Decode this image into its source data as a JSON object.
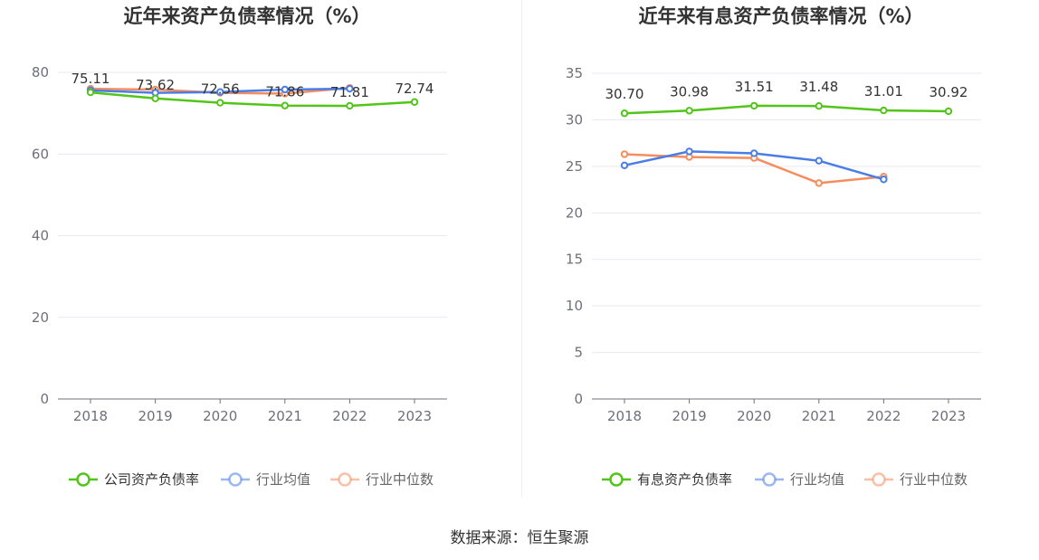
{
  "source": "数据来源：恒生聚源",
  "chart_data": [
    {
      "type": "line",
      "title": "近年来资产负债率情况（%）",
      "categories": [
        "2018",
        "2019",
        "2020",
        "2021",
        "2022",
        "2023"
      ],
      "ylim": [
        0,
        80
      ],
      "yticks": [
        0,
        20,
        40,
        60,
        80
      ],
      "grid": true,
      "legend_position": "bottom",
      "series": [
        {
          "name": "公司资产负债率",
          "color": "#52c41a",
          "values": [
            75.11,
            73.62,
            72.56,
            71.86,
            71.81,
            72.74
          ],
          "labels": [
            "75.11",
            "73.62",
            "72.56",
            "71.86",
            "71.81",
            "72.74"
          ]
        },
        {
          "name": "行业均值",
          "color": "#4a7de6",
          "values": [
            75.6,
            75.0,
            75.2,
            75.8,
            76.0,
            null
          ]
        },
        {
          "name": "行业中位数",
          "color": "#f58d5e",
          "values": [
            76.0,
            75.8,
            75.0,
            74.8,
            76.2,
            null
          ]
        }
      ]
    },
    {
      "type": "line",
      "title": "近年来有息资产负债率情况（%）",
      "categories": [
        "2018",
        "2019",
        "2020",
        "2021",
        "2022",
        "2023"
      ],
      "ylim": [
        0,
        35
      ],
      "yticks": [
        0,
        5,
        10,
        15,
        20,
        25,
        30,
        35
      ],
      "grid": true,
      "legend_position": "bottom",
      "series": [
        {
          "name": "有息资产负债率",
          "color": "#52c41a",
          "values": [
            30.7,
            30.98,
            31.51,
            31.48,
            31.01,
            30.92
          ],
          "labels": [
            "30.70",
            "30.98",
            "31.51",
            "31.48",
            "31.01",
            "30.92"
          ]
        },
        {
          "name": "行业均值",
          "color": "#4a7de6",
          "values": [
            25.1,
            26.6,
            26.4,
            25.6,
            23.6,
            null
          ]
        },
        {
          "name": "行业中位数",
          "color": "#f58d5e",
          "values": [
            26.3,
            26.0,
            25.9,
            23.2,
            23.9,
            null
          ]
        }
      ]
    }
  ]
}
